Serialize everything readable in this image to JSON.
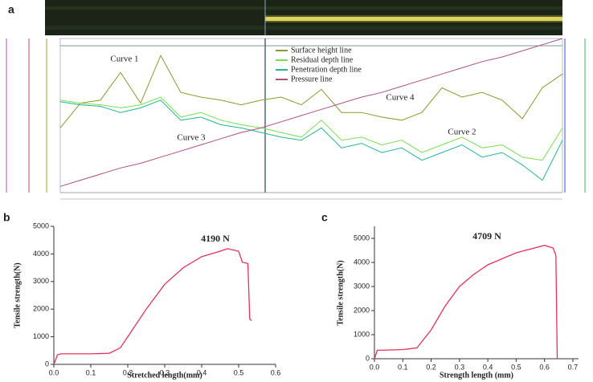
{
  "chart_data": [
    {
      "type": "line",
      "panel_label": "a",
      "x": [
        0,
        4,
        8,
        12,
        16,
        20,
        24,
        28,
        32,
        36,
        40,
        44,
        48,
        52,
        56,
        60,
        64,
        68,
        72,
        76,
        80,
        84,
        88,
        92,
        96,
        100
      ],
      "xlim": [
        0,
        100
      ],
      "ylim": [
        0,
        100
      ],
      "series": [
        {
          "name": "Surface height line",
          "color": "#8a9a2a",
          "values": [
            42,
            58,
            60,
            78,
            58,
            89,
            65,
            62,
            60,
            57,
            60,
            62,
            57,
            67,
            52,
            52,
            49,
            47,
            52,
            68,
            62,
            65,
            60,
            48,
            68,
            77
          ]
        },
        {
          "name": "Residual depth line",
          "color": "#78e050",
          "values": [
            60,
            58,
            57,
            55,
            57,
            62,
            49,
            52,
            47,
            44,
            42,
            39,
            36,
            47,
            34,
            36,
            31,
            34,
            26,
            31,
            36,
            29,
            31,
            23,
            21,
            42
          ]
        },
        {
          "name": "Penetration depth line",
          "color": "#20b890",
          "values": [
            59,
            57,
            56,
            52,
            55,
            60,
            47,
            49,
            44,
            42,
            39,
            36,
            34,
            42,
            29,
            32,
            26,
            29,
            21,
            26,
            31,
            23,
            26,
            18,
            8,
            34
          ]
        },
        {
          "name": "Pressure line",
          "color": "#b0507a",
          "values": [
            4,
            8,
            12,
            16,
            19,
            23,
            27,
            31,
            35,
            39,
            42,
            46,
            50,
            54,
            58,
            62,
            65,
            69,
            73,
            77,
            81,
            85,
            88,
            92,
            96,
            100
          ]
        }
      ],
      "annotations": [
        {
          "text": "Curve 1",
          "color": "#8a9a2a"
        },
        {
          "text": "Curve 2",
          "color": "#58c838"
        },
        {
          "text": "Curve 3",
          "color": "#1a9a78"
        },
        {
          "text": "Curve 4",
          "color": "#9a4060"
        }
      ]
    },
    {
      "type": "line",
      "panel_label": "b",
      "x_label": "Stretched length(mm)",
      "y_label": "Tensile strength(N)",
      "x": [
        0,
        0.01,
        0.02,
        0.1,
        0.15,
        0.18,
        0.2,
        0.25,
        0.3,
        0.35,
        0.4,
        0.45,
        0.47,
        0.5,
        0.51,
        0.525,
        0.53,
        0.535
      ],
      "values": [
        0,
        350,
        380,
        380,
        400,
        600,
        1000,
        2000,
        2900,
        3500,
        3900,
        4100,
        4190,
        4100,
        3700,
        3650,
        1650,
        1580
      ],
      "color": "#e8305a",
      "xlim": [
        0,
        0.6
      ],
      "ylim": [
        0,
        5000
      ],
      "xticks": [
        {
          "value": 0,
          "label": "0.0"
        },
        0.1,
        0.2,
        0.3,
        0.4,
        0.5,
        0.6
      ],
      "yticks": [
        0,
        1000,
        2000,
        3000,
        4000,
        5000
      ],
      "annotations": [
        {
          "text": "4190 N",
          "color": "#222"
        }
      ]
    },
    {
      "type": "line",
      "panel_label": "c",
      "x_label": "Strength length (mm)",
      "y_label": "Tensile strength(N)",
      "x": [
        0,
        0.01,
        0.1,
        0.15,
        0.2,
        0.25,
        0.3,
        0.35,
        0.4,
        0.5,
        0.6,
        0.63,
        0.64,
        0.645
      ],
      "values": [
        0,
        350,
        380,
        450,
        1200,
        2200,
        3000,
        3500,
        3900,
        4400,
        4709,
        4600,
        4300,
        0
      ],
      "color": "#e8305a",
      "xlim": [
        0,
        0.72
      ],
      "ylim": [
        0,
        5500
      ],
      "xticks": [
        {
          "value": 0,
          "label": "0.0"
        },
        0.1,
        0.2,
        0.3,
        0.4,
        0.5,
        0.6,
        0.7
      ],
      "yticks": [
        0,
        1000,
        2000,
        3000,
        4000,
        5000
      ],
      "annotations": [
        {
          "text": "4709 N",
          "color": "#222"
        }
      ]
    }
  ]
}
